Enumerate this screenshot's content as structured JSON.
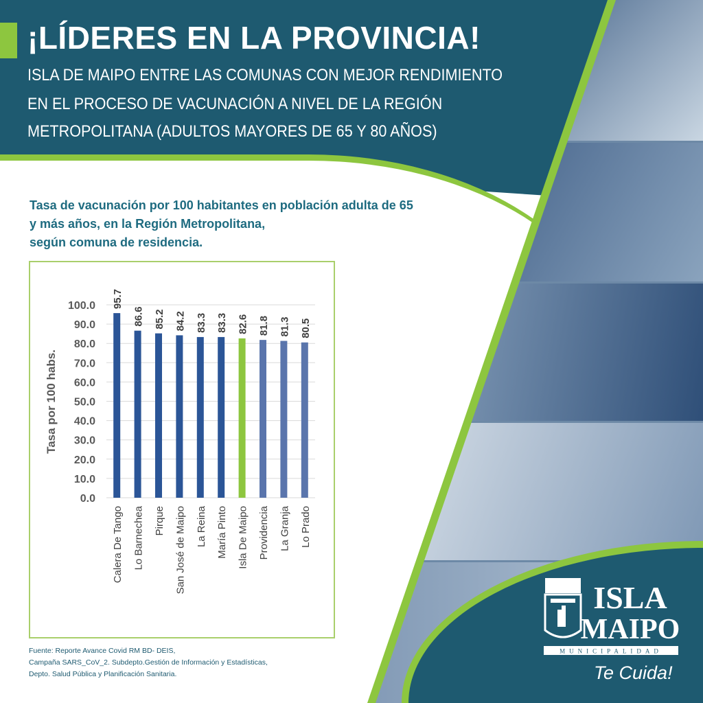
{
  "header": {
    "title": "¡LÍDERES EN LA PROVINCIA!",
    "subtitle_lines": [
      "ISLA DE MAIPO ENTRE LAS COMUNAS CON MEJOR RENDIMIENTO",
      "EN EL PROCESO DE VACUNACIÓN A NIVEL DE LA REGIÓN",
      "METROPOLITANA (ADULTOS MAYORES DE 65 Y 80 AÑOS)"
    ]
  },
  "colors": {
    "teal": "#1e5a70",
    "green": "#8dc63f",
    "bar_blue": "#2b5597",
    "bar_light": "#5a75ac"
  },
  "chart_data": {
    "type": "bar",
    "title_lines": [
      "Tasa de vacunación por 100 habitantes en población adulta de 65",
      "y más años, en la Región Metropolitana,",
      "según comuna de residencia."
    ],
    "categories": [
      "Calera De Tango",
      "Lo Barnechea",
      "Pirque",
      "San José de Maipo",
      "La Reina",
      "María Pinto",
      "Isla De Maipo",
      "Providencia",
      "La Granja",
      "Lo Prado"
    ],
    "values": [
      95.7,
      86.6,
      85.2,
      84.2,
      83.3,
      83.3,
      82.6,
      81.8,
      81.3,
      80.5
    ],
    "value_labels": [
      "95.7",
      "86.6",
      "85.2",
      "84.2",
      "83.3",
      "83.3",
      "82.6",
      "81.8",
      "81.3",
      "80.5"
    ],
    "highlight": "Isla De Maipo",
    "ylabel": "Tasa por 100 habs.",
    "xlabel": "",
    "ylim": [
      0,
      100
    ],
    "yticks": [
      "0.0",
      "10.0",
      "20.0",
      "30.0",
      "40.0",
      "50.0",
      "60.0",
      "70.0",
      "80.0",
      "90.0",
      "100.0"
    ],
    "grid": true
  },
  "source": [
    "Fuente: Reporte Avance Covid RM BD- DEIS,",
    "Campaña SARS_CoV_2. Subdepto.Gestión de Información y Estadísticas,",
    "Depto. Salud Pública y Planificación Sanitaria."
  ],
  "logo": {
    "text": "ISLA DE MAIPO",
    "subtext": "MUNICIPALIDAD",
    "crest_text": "ISLA DE MAIPO",
    "tagline": "Te Cuida!"
  }
}
